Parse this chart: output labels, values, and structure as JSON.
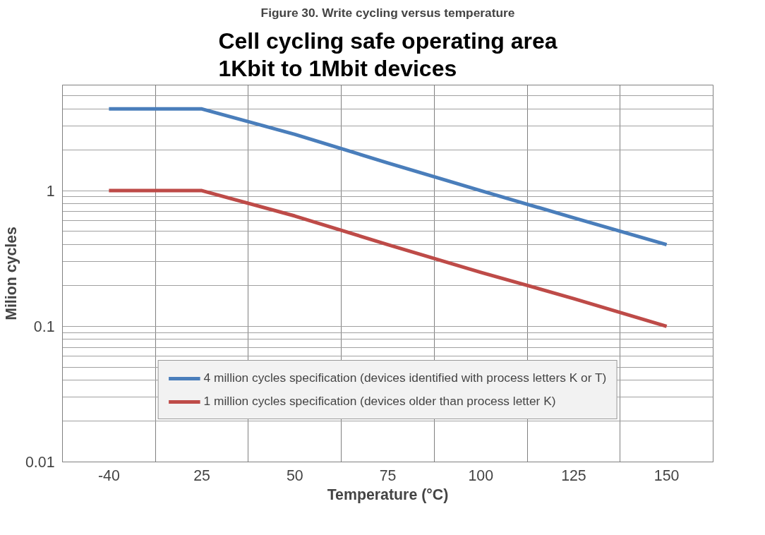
{
  "chart_data": {
    "type": "line",
    "title": "Cell cycling safe operating area\n1Kbit to 1Mbit devices",
    "xlabel": "Temperature (°C)",
    "ylabel": "Milion cycles",
    "annotations": [
      "Figure 30. Write cycling versus temperature"
    ],
    "categories": [
      "-40",
      "25",
      "50",
      "75",
      "100",
      "125",
      "150"
    ],
    "series": [
      {
        "name": "4 million cycles specification (devices identified with process letters K or T)",
        "color": "#4a7ebb",
        "values": [
          4,
          4,
          2.6,
          1.6,
          1.0,
          0.63,
          0.4
        ]
      },
      {
        "name": "1 million cycles specification (devices older than process letter K)",
        "color": "#be4b48",
        "values": [
          1,
          1,
          0.65,
          0.4,
          0.25,
          0.16,
          0.1
        ]
      }
    ],
    "log": "y",
    "ylim": [
      0.01,
      6
    ],
    "yticks": [
      0.01,
      {
        "value": 0.02,
        "label": null
      },
      {
        "value": 0.03,
        "label": null
      },
      {
        "value": 0.04,
        "label": null
      },
      {
        "value": 0.05,
        "label": null
      },
      {
        "value": 0.06,
        "label": null
      },
      {
        "value": 0.07,
        "label": null
      },
      {
        "value": 0.08,
        "label": null
      },
      {
        "value": 0.09,
        "label": null
      },
      0.1,
      {
        "value": 0.2,
        "label": null
      },
      {
        "value": 0.3,
        "label": null
      },
      {
        "value": 0.4,
        "label": null
      },
      {
        "value": 0.5,
        "label": null
      },
      {
        "value": 0.6,
        "label": null
      },
      {
        "value": 0.7,
        "label": null
      },
      {
        "value": 0.8,
        "label": null
      },
      {
        "value": 0.9,
        "label": null
      },
      1,
      {
        "value": 2,
        "label": null
      },
      {
        "value": 3,
        "label": null
      },
      {
        "value": 4,
        "label": null
      },
      {
        "value": 5,
        "label": null
      },
      {
        "value": 6,
        "label": null
      }
    ],
    "grid": true,
    "legend": "bottom",
    "marker": "none",
    "line_style": "solid"
  }
}
